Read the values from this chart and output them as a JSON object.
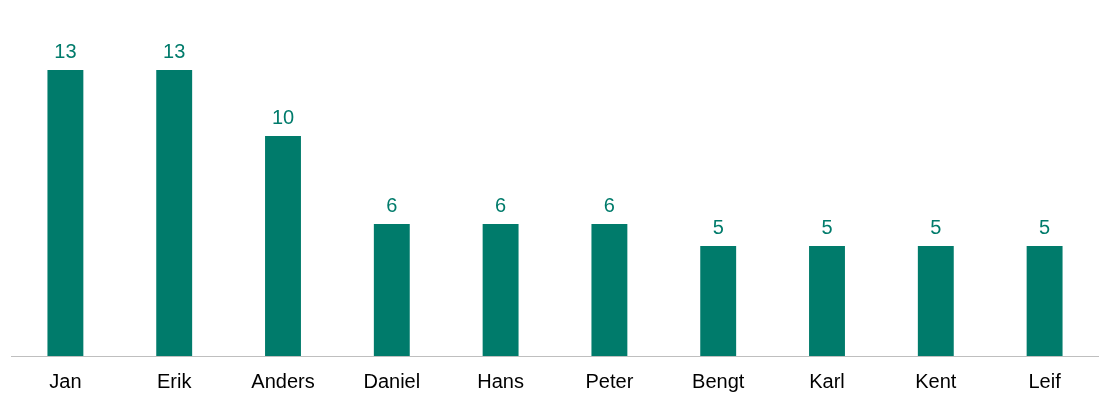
{
  "chart_data": {
    "type": "bar",
    "categories": [
      "Jan",
      "Erik",
      "Anders",
      "Daniel",
      "Hans",
      "Peter",
      "Bengt",
      "Karl",
      "Kent",
      "Leif"
    ],
    "values": [
      13,
      13,
      10,
      6,
      6,
      6,
      5,
      5,
      5,
      5
    ],
    "color": "#007b6b",
    "data_labels": true,
    "grid": false,
    "legend": false,
    "tick_labels": "x"
  }
}
